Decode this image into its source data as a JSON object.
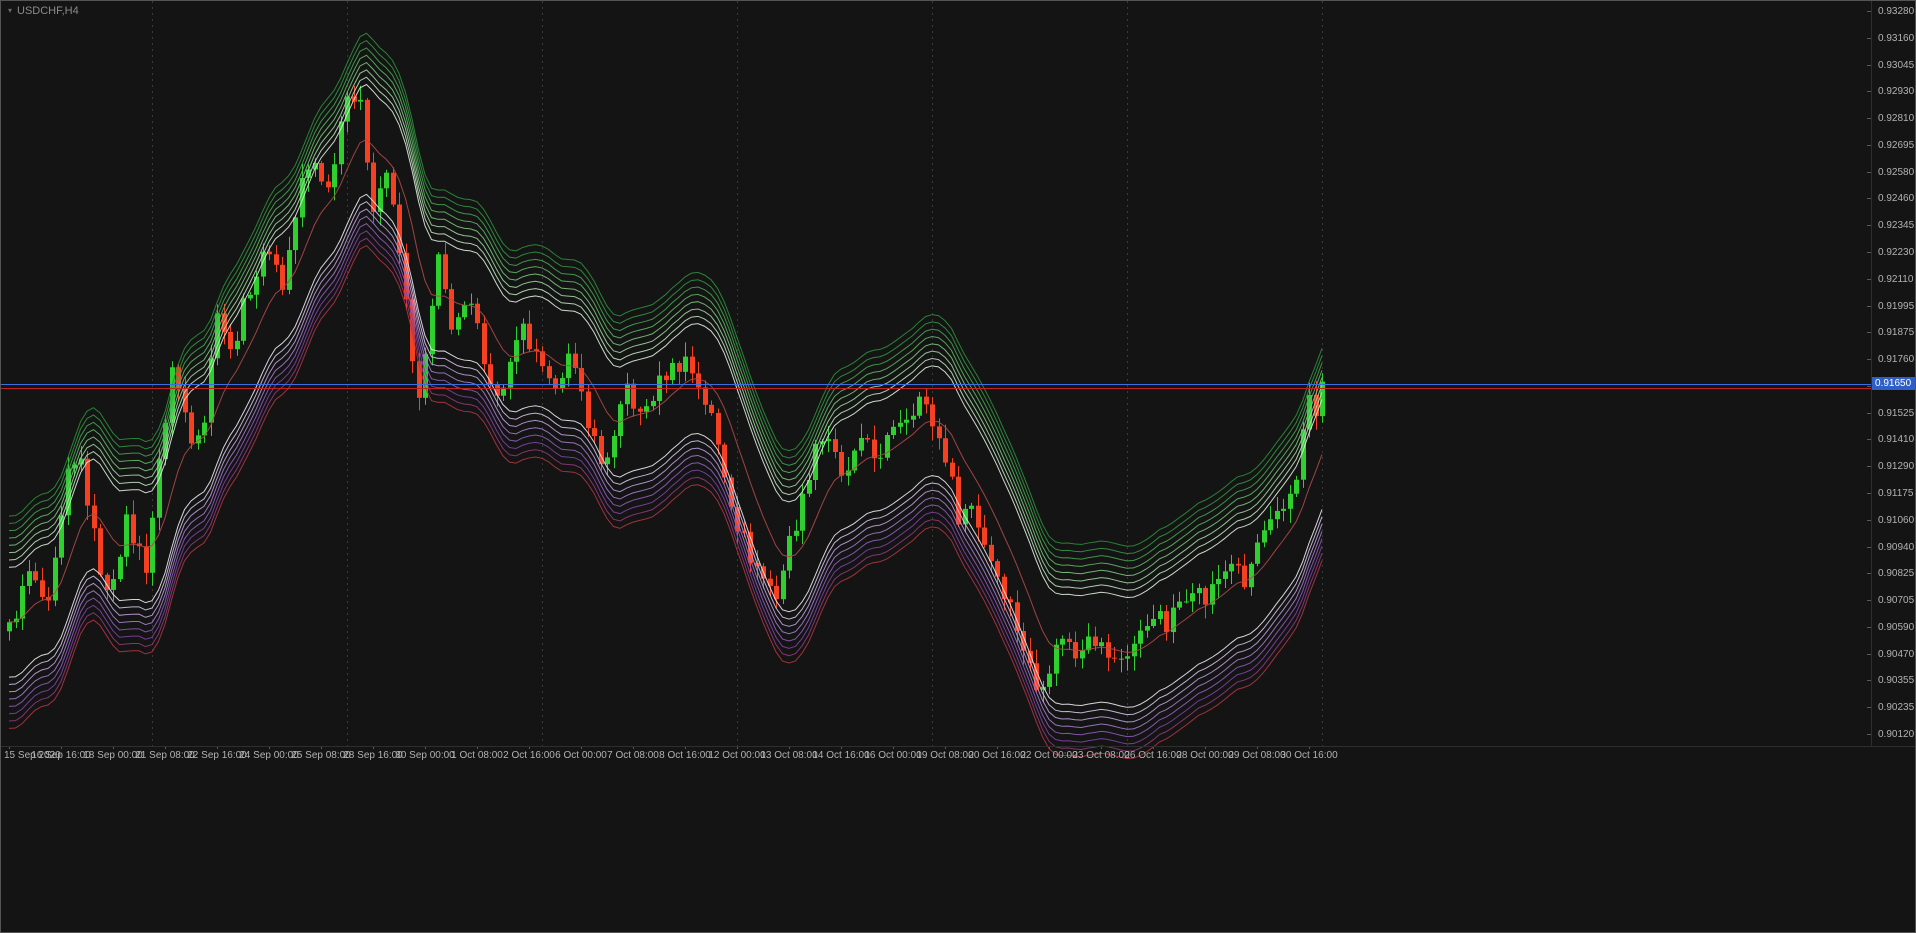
{
  "window": {
    "symbol_label": "USDCHF,H4",
    "background": "#141414",
    "border_color": "#545454",
    "axis_text_color": "#b2b2b2",
    "symbol_text_color": "#8b8b8b"
  },
  "price_axis": {
    "labels": [
      "0.93280",
      "0.93160",
      "0.93045",
      "0.92930",
      "0.92810",
      "0.92695",
      "0.92580",
      "0.92460",
      "0.92345",
      "0.92230",
      "0.92110",
      "0.91995",
      "0.91875",
      "0.91760",
      "0.91640",
      "0.91525",
      "0.91410",
      "0.91290",
      "0.91175",
      "0.91060",
      "0.90940",
      "0.90825",
      "0.90705",
      "0.90590",
      "0.90470",
      "0.90355",
      "0.90235",
      "0.90120"
    ]
  },
  "time_axis": {
    "labels": [
      "15 Sep 2020",
      "16 Sep 16:00",
      "18 Sep 00:00",
      "21 Sep 08:00",
      "22 Sep 16:00",
      "24 Sep 00:00",
      "25 Sep 08:00",
      "28 Sep 16:00",
      "30 Sep 00:00",
      "1 Oct 08:00",
      "2 Oct 16:00",
      "6 Oct 00:00",
      "7 Oct 08:00",
      "8 Oct 16:00",
      "12 Oct 00:00",
      "13 Oct 08:00",
      "14 Oct 16:00",
      "16 Oct 00:00",
      "19 Oct 08:00",
      "20 Oct 16:00",
      "22 Oct 00:00",
      "23 Oct 08:00",
      "26 Oct 16:00",
      "28 Oct 00:00",
      "29 Oct 08:00",
      "30 Oct 16:00"
    ]
  },
  "price_tag": {
    "value": "0.91650",
    "bg_color": "#2e5fc9",
    "text_color": "#ffffff"
  },
  "chart_data": {
    "type": "candlestick",
    "symbol": "USDCHF",
    "timeframe": "H4",
    "title": "USDCHF,H4",
    "bar_count": 203,
    "price_range_visible": [
      0.9012,
      0.9328
    ],
    "time_range_visible": [
      "15 Sep 2020",
      "30 Oct 16:00"
    ],
    "grid": "vertical dashed period separators only",
    "candle_up_color": "#30cf30",
    "candle_down_color": "#f54021",
    "horizontal_lines": [
      {
        "name": "bid-line",
        "price": 0.9165,
        "color": "#3a6fe0"
      },
      {
        "name": "lower-price-line",
        "price": 0.91634,
        "color": "#c22222"
      }
    ],
    "separator_bars": [
      22,
      52,
      82,
      112,
      142,
      172,
      202
    ],
    "separator_color": "#3a3a3a",
    "waypoints_format": "[bar_index, close_price] swing points read from chart; bars between are interpolated",
    "price_path_waypoints": [
      [
        0,
        0.9058
      ],
      [
        3,
        0.9082
      ],
      [
        6,
        0.9066
      ],
      [
        9,
        0.9124
      ],
      [
        11,
        0.9131
      ],
      [
        13,
        0.9098
      ],
      [
        15,
        0.9072
      ],
      [
        18,
        0.9104
      ],
      [
        21,
        0.9086
      ],
      [
        25,
        0.9172
      ],
      [
        28,
        0.9143
      ],
      [
        30,
        0.915
      ],
      [
        32,
        0.92
      ],
      [
        34,
        0.9178
      ],
      [
        37,
        0.9208
      ],
      [
        40,
        0.9225
      ],
      [
        42,
        0.9208
      ],
      [
        45,
        0.9253
      ],
      [
        47,
        0.9262
      ],
      [
        49,
        0.925
      ],
      [
        52,
        0.9295
      ],
      [
        54,
        0.9285
      ],
      [
        56,
        0.9244
      ],
      [
        58,
        0.9258
      ],
      [
        60,
        0.9222
      ],
      [
        63,
        0.9156
      ],
      [
        66,
        0.9218
      ],
      [
        68,
        0.9192
      ],
      [
        71,
        0.9198
      ],
      [
        75,
        0.9158
      ],
      [
        79,
        0.9188
      ],
      [
        83,
        0.9163
      ],
      [
        86,
        0.9176
      ],
      [
        88,
        0.916
      ],
      [
        91,
        0.913
      ],
      [
        93,
        0.914
      ],
      [
        95,
        0.9164
      ],
      [
        97,
        0.915
      ],
      [
        99,
        0.916
      ],
      [
        101,
        0.917
      ],
      [
        104,
        0.9176
      ],
      [
        106,
        0.9165
      ],
      [
        108,
        0.915
      ],
      [
        110,
        0.9126
      ],
      [
        112,
        0.9104
      ],
      [
        114,
        0.909
      ],
      [
        116,
        0.908
      ],
      [
        118,
        0.9073
      ],
      [
        120,
        0.9096
      ],
      [
        122,
        0.9114
      ],
      [
        124,
        0.914
      ],
      [
        126,
        0.9142
      ],
      [
        128,
        0.9122
      ],
      [
        130,
        0.9133
      ],
      [
        132,
        0.9141
      ],
      [
        134,
        0.913
      ],
      [
        136,
        0.9148
      ],
      [
        138,
        0.9152
      ],
      [
        140,
        0.9159
      ],
      [
        142,
        0.9148
      ],
      [
        144,
        0.9134
      ],
      [
        146,
        0.9108
      ],
      [
        148,
        0.9112
      ],
      [
        150,
        0.9096
      ],
      [
        152,
        0.9082
      ],
      [
        154,
        0.9068
      ],
      [
        156,
        0.905
      ],
      [
        158,
        0.9032
      ],
      [
        160,
        0.9042
      ],
      [
        162,
        0.9056
      ],
      [
        164,
        0.9046
      ],
      [
        166,
        0.9058
      ],
      [
        168,
        0.905
      ],
      [
        170,
        0.9043
      ],
      [
        172,
        0.9048
      ],
      [
        174,
        0.9055
      ],
      [
        176,
        0.9066
      ],
      [
        178,
        0.9058
      ],
      [
        180,
        0.907
      ],
      [
        182,
        0.9078
      ],
      [
        184,
        0.907
      ],
      [
        186,
        0.908
      ],
      [
        188,
        0.9088
      ],
      [
        190,
        0.9076
      ],
      [
        192,
        0.9095
      ],
      [
        194,
        0.9102
      ],
      [
        196,
        0.911
      ],
      [
        198,
        0.9126
      ],
      [
        200,
        0.916
      ],
      [
        201,
        0.915
      ],
      [
        202,
        0.9164
      ]
    ],
    "ribbon": {
      "description": "moving-average channel: 8 green lines above, 8 white-violet-red lines below, thin red center line",
      "ema_period": 5,
      "inner_offset": 0.0024,
      "line_gap": 0.00032,
      "center_color": "#b04848",
      "upper_colors": [
        "#dff0df",
        "#bfe3bf",
        "#9dd49d",
        "#7cc47e",
        "#5db463",
        "#45a350",
        "#339441",
        "#2b8f3a"
      ],
      "lower_colors": [
        "#eceaf2",
        "#d4c4e8",
        "#bb9fda",
        "#a37cca",
        "#8f5cb8",
        "#7e42a4",
        "#8f3a78",
        "#b03540"
      ]
    }
  }
}
